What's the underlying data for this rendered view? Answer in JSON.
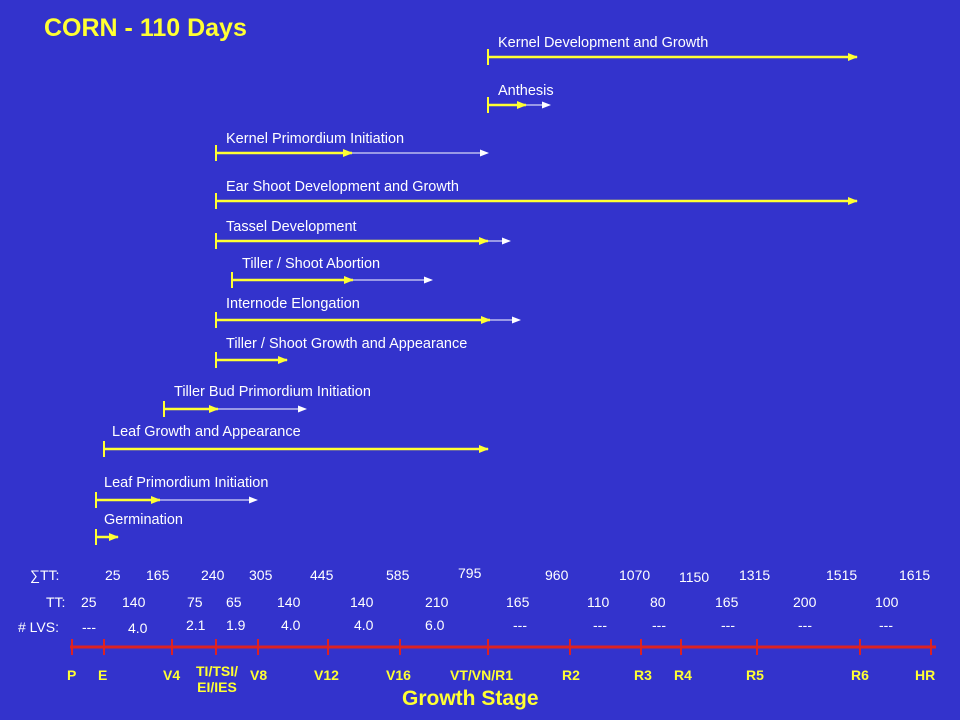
{
  "title": "CORN - 110 Days",
  "processes": [
    {
      "label": "Kernel Development and Growth",
      "x1": "VT/VN/R1",
      "x2": "R6",
      "dashed_to": null
    },
    {
      "label": "Anthesis",
      "x1": "VT/VN/R1",
      "x2": "",
      "dashed_to": ""
    },
    {
      "label": "Kernel Primordium Initiation",
      "x1": "TI/TSI/EI/IES",
      "x2": "",
      "dashed_to": "VT/VN/R1"
    },
    {
      "label": "Ear Shoot Development and Growth",
      "x1": "TI/TSI/EI/IES",
      "x2": "R6",
      "dashed_to": null
    },
    {
      "label": "Tassel Development",
      "x1": "TI/TSI/EI/IES",
      "x2": "VT/VN/R1",
      "dashed_to": ""
    },
    {
      "label": "Tiller / Shoot Abortion",
      "x1": "",
      "x2": "",
      "dashed_to": ""
    },
    {
      "label": "Internode Elongation",
      "x1": "TI/TSI/EI/IES",
      "x2": "VT/VN/R1",
      "dashed_to": ""
    },
    {
      "label": "Tiller / Shoot Growth and Appearance",
      "x1": "TI/TSI/EI/IES",
      "x2": "",
      "dashed_to": null
    },
    {
      "label": "Tiller Bud Primordium Initiation",
      "x1": "V4",
      "x2": "",
      "dashed_to": ""
    },
    {
      "label": "Leaf Growth and Appearance",
      "x1": "E",
      "x2": "VT/VN/R1",
      "dashed_to": null
    },
    {
      "label": "Leaf Primordium Initiation",
      "x1": "E",
      "x2": "",
      "dashed_to": ""
    },
    {
      "label": "Germination",
      "x1": "E",
      "x2": "",
      "dashed_to": null
    }
  ],
  "sumtt": {
    "label": "∑TT:",
    "values": [
      "25",
      "165",
      "240",
      "305",
      "445",
      "585",
      "795",
      "960",
      "1070",
      "1150",
      "1315",
      "1515",
      "1615"
    ]
  },
  "tt": {
    "label": "TT:",
    "values": [
      "25",
      "140",
      "75",
      "65",
      "140",
      "140",
      "210",
      "165",
      "110",
      "80",
      "165",
      "200",
      "100"
    ]
  },
  "lvs": {
    "label": "# LVS:",
    "values": [
      "---",
      "4.0",
      "2.1",
      "1.9",
      "4.0",
      "4.0",
      "6.0",
      "---",
      "---",
      "---",
      "---",
      "---",
      "---"
    ]
  },
  "stages": [
    "P",
    "E",
    "V4",
    "TI/TSI/EI/IES",
    "V8",
    "V12",
    "V16",
    "VT/VN/R1",
    "R2",
    "R3",
    "R4",
    "R5",
    "R6",
    "HR"
  ],
  "stage_display": {
    "tissue": "TI/TSI/",
    "tissue2": "EI/IES"
  },
  "axis_title": "Growth Stage",
  "colors": {
    "background": "#3333cc",
    "title": "#ffff33",
    "bar": "#ffff33",
    "dashed": "#ffffff",
    "axis": "#dd2222",
    "stage_label": "#ffff33",
    "text": "#ffffff"
  }
}
